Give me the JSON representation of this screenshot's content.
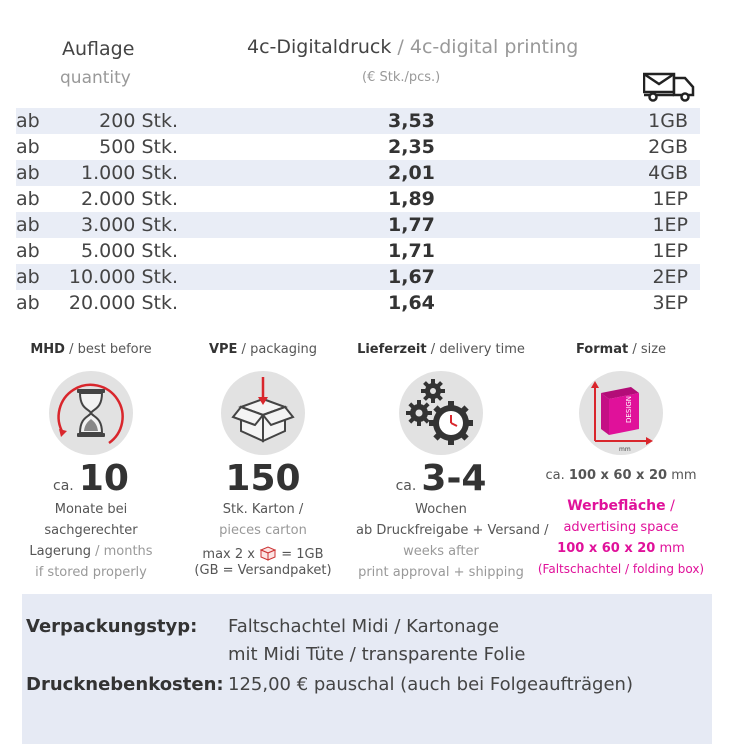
{
  "header": {
    "quantity_de": "Auflage",
    "quantity_en": "quantity",
    "title_de": "4c-Digitaldruck",
    "title_sep": " / ",
    "title_en": "4c-digital printing",
    "unit": "(€ Stk./pcs.)",
    "shipping_icon": "truck-mail-icon"
  },
  "price_rows": [
    {
      "prefix": "ab",
      "qty": "200 Stk.",
      "price": "3,53",
      "ship": "1GB"
    },
    {
      "prefix": "ab",
      "qty": "500 Stk.",
      "price": "2,35",
      "ship": "2GB"
    },
    {
      "prefix": "ab",
      "qty": "1.000 Stk.",
      "price": "2,01",
      "ship": "4GB"
    },
    {
      "prefix": "ab",
      "qty": "2.000 Stk.",
      "price": "1,89",
      "ship": "1EP"
    },
    {
      "prefix": "ab",
      "qty": "3.000 Stk.",
      "price": "1,77",
      "ship": "1EP"
    },
    {
      "prefix": "ab",
      "qty": "5.000 Stk.",
      "price": "1,71",
      "ship": "1EP"
    },
    {
      "prefix": "ab",
      "qty": "10.000 Stk.",
      "price": "1,67",
      "ship": "2EP"
    },
    {
      "prefix": "ab",
      "qty": "20.000 Stk.",
      "price": "1,64",
      "ship": "3EP"
    }
  ],
  "mhd": {
    "title_de": "MHD",
    "title_en": " / best before",
    "ca": "ca.",
    "value": "10",
    "line1": "Monate bei",
    "line2": "sachgerechter",
    "line3_de": "Lagerung",
    "line3_en": " / months",
    "line4": "if stored properly",
    "icon": "hourglass-icon"
  },
  "vpe": {
    "title_de": "VPE",
    "title_en": " / packaging",
    "value": "150",
    "line1": "Stk. Karton /",
    "line2": "pieces carton",
    "line3a": "max 2 x",
    "line3b": "= 1GB",
    "line4": "(GB = Versandpaket)",
    "icon": "box-icon"
  },
  "lieferzeit": {
    "title_de": "Lieferzeit",
    "title_en": " / delivery time",
    "ca": "ca.",
    "value": "3-4",
    "line1": "Wochen",
    "line2": "ab Druckfreigabe + Versand /",
    "line3": "weeks after",
    "line4": "print approval + shipping",
    "icon": "gears-clock-icon"
  },
  "format": {
    "title_de": "Format",
    "title_en": " / size",
    "size_ca": "ca.",
    "size_value": "100 x 60 x 20",
    "size_unit": " mm",
    "adv_de": "Werbefläche",
    "adv_sep": " /",
    "adv_en": "advertising space",
    "adv_size": "100 x 60 x 20",
    "adv_unit": " mm",
    "adv_note": "(Faltschachtel / folding box)",
    "icon_label": "DESIGN",
    "icon_mm": "mm",
    "icon": "box-format-icon"
  },
  "bottom": {
    "packaging_label": "Verpackungstyp:",
    "packaging_value1": "Faltschachtel Midi / Kartonage",
    "packaging_value2": "mit Midi Tüte / transparente Folie",
    "costs_label": "Drucknebenkosten:",
    "costs_value": "125,00 € pauschal (auch bei Folgeaufträgen)"
  },
  "colors": {
    "row_shade": "#e9edf6",
    "accent_pink": "#e0119a",
    "icon_red": "#d9262c",
    "bottom_panel": "#e6eaf4"
  }
}
